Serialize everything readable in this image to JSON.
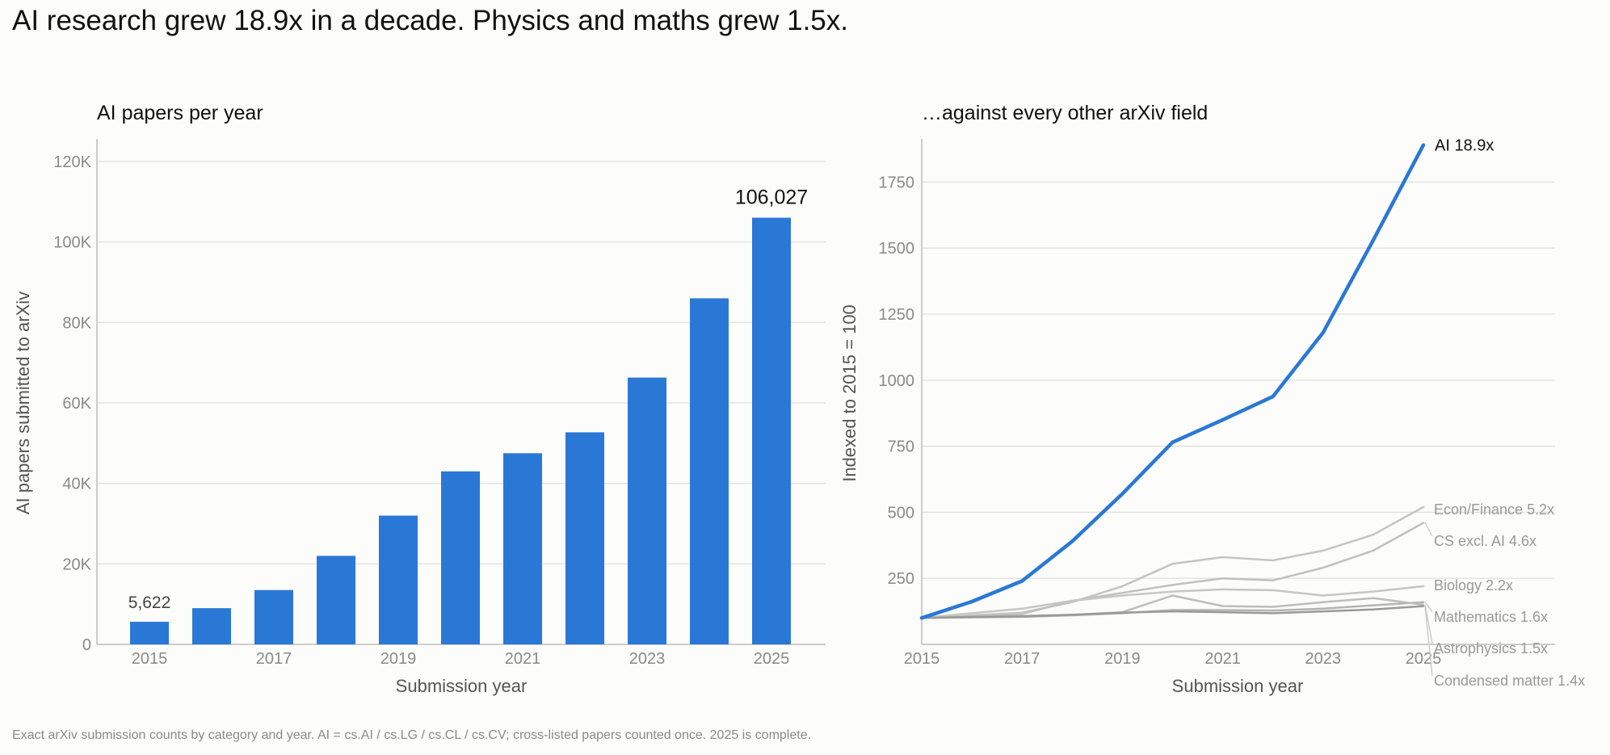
{
  "title": "AI research grew 18.9x in a decade. Physics and maths grew 1.5x.",
  "footnote": "Exact arXiv submission counts by category and year. AI = cs.AI / cs.LG / cs.CL / cs.CV; cross-listed papers counted once. 2025 is complete.",
  "colors": {
    "accent": "#2a78d6",
    "other": "#c3c3c3",
    "muted": "#9b9b9b"
  },
  "chart_data": [
    {
      "type": "bar",
      "title": "AI papers per year",
      "xlabel": "Submission year",
      "ylabel": "AI papers submitted to arXiv",
      "categories": [
        "2015",
        "2016",
        "2017",
        "2018",
        "2019",
        "2020",
        "2021",
        "2022",
        "2023",
        "2024",
        "2025"
      ],
      "values": [
        5622,
        9000,
        13500,
        22000,
        32000,
        43000,
        47500,
        52700,
        66300,
        86000,
        106027
      ],
      "ylim": [
        0,
        120000
      ],
      "yticks": [
        0,
        20000,
        40000,
        60000,
        80000,
        100000,
        120000
      ],
      "ytick_labels": [
        "0",
        "20K",
        "40K",
        "60K",
        "80K",
        "100K",
        "120K"
      ],
      "xtick_labels": [
        "2015",
        "2017",
        "2019",
        "2021",
        "2023",
        "2025"
      ],
      "data_labels": [
        {
          "index": 0,
          "text": "5,622"
        },
        {
          "index": 10,
          "text": "106,027"
        }
      ],
      "grid": true
    },
    {
      "type": "line",
      "title": "…against every other arXiv field",
      "xlabel": "Submission year",
      "ylabel": "Indexed to 2015 = 100",
      "x": [
        2015,
        2016,
        2017,
        2018,
        2019,
        2020,
        2021,
        2022,
        2023,
        2024,
        2025
      ],
      "xlim": [
        2015,
        2027.5
      ],
      "ylim": [
        0,
        1950
      ],
      "yticks": [
        250,
        500,
        750,
        1000,
        1250,
        1500,
        1750
      ],
      "ytick_labels": [
        "250",
        "500",
        "750",
        "1000",
        "1250",
        "1500",
        "1750"
      ],
      "xtick_labels": [
        "2015",
        "2017",
        "2019",
        "2021",
        "2023",
        "2025"
      ],
      "grid": true,
      "series": [
        {
          "name": "AI",
          "multiplier": "18.9x",
          "highlight": true,
          "values": [
            100,
            162,
            240,
            390,
            570,
            765,
            850,
            938,
            1180,
            1530,
            1890
          ]
        },
        {
          "name": "Econ/Finance",
          "multiplier": "5.2x",
          "values": [
            100,
            110,
            120,
            160,
            220,
            305,
            330,
            318,
            355,
            415,
            520
          ]
        },
        {
          "name": "CS excl. AI",
          "multiplier": "4.6x",
          "values": [
            100,
            105,
            115,
            165,
            195,
            225,
            250,
            242,
            290,
            355,
            460
          ]
        },
        {
          "name": "Biology",
          "multiplier": "2.2x",
          "values": [
            100,
            118,
            135,
            165,
            185,
            200,
            208,
            205,
            185,
            200,
            220
          ]
        },
        {
          "name": "Mathematics",
          "multiplier": "1.6x",
          "values": [
            100,
            102,
            104,
            110,
            118,
            130,
            130,
            128,
            135,
            148,
            160
          ]
        },
        {
          "name": "Astrophysics",
          "multiplier": "1.5x",
          "values": [
            100,
            105,
            108,
            112,
            122,
            185,
            145,
            142,
            160,
            175,
            150
          ]
        },
        {
          "name": "Condensed matter",
          "multiplier": "1.4x",
          "values": [
            100,
            104,
            106,
            112,
            120,
            125,
            122,
            118,
            125,
            132,
            145
          ]
        }
      ]
    }
  ]
}
